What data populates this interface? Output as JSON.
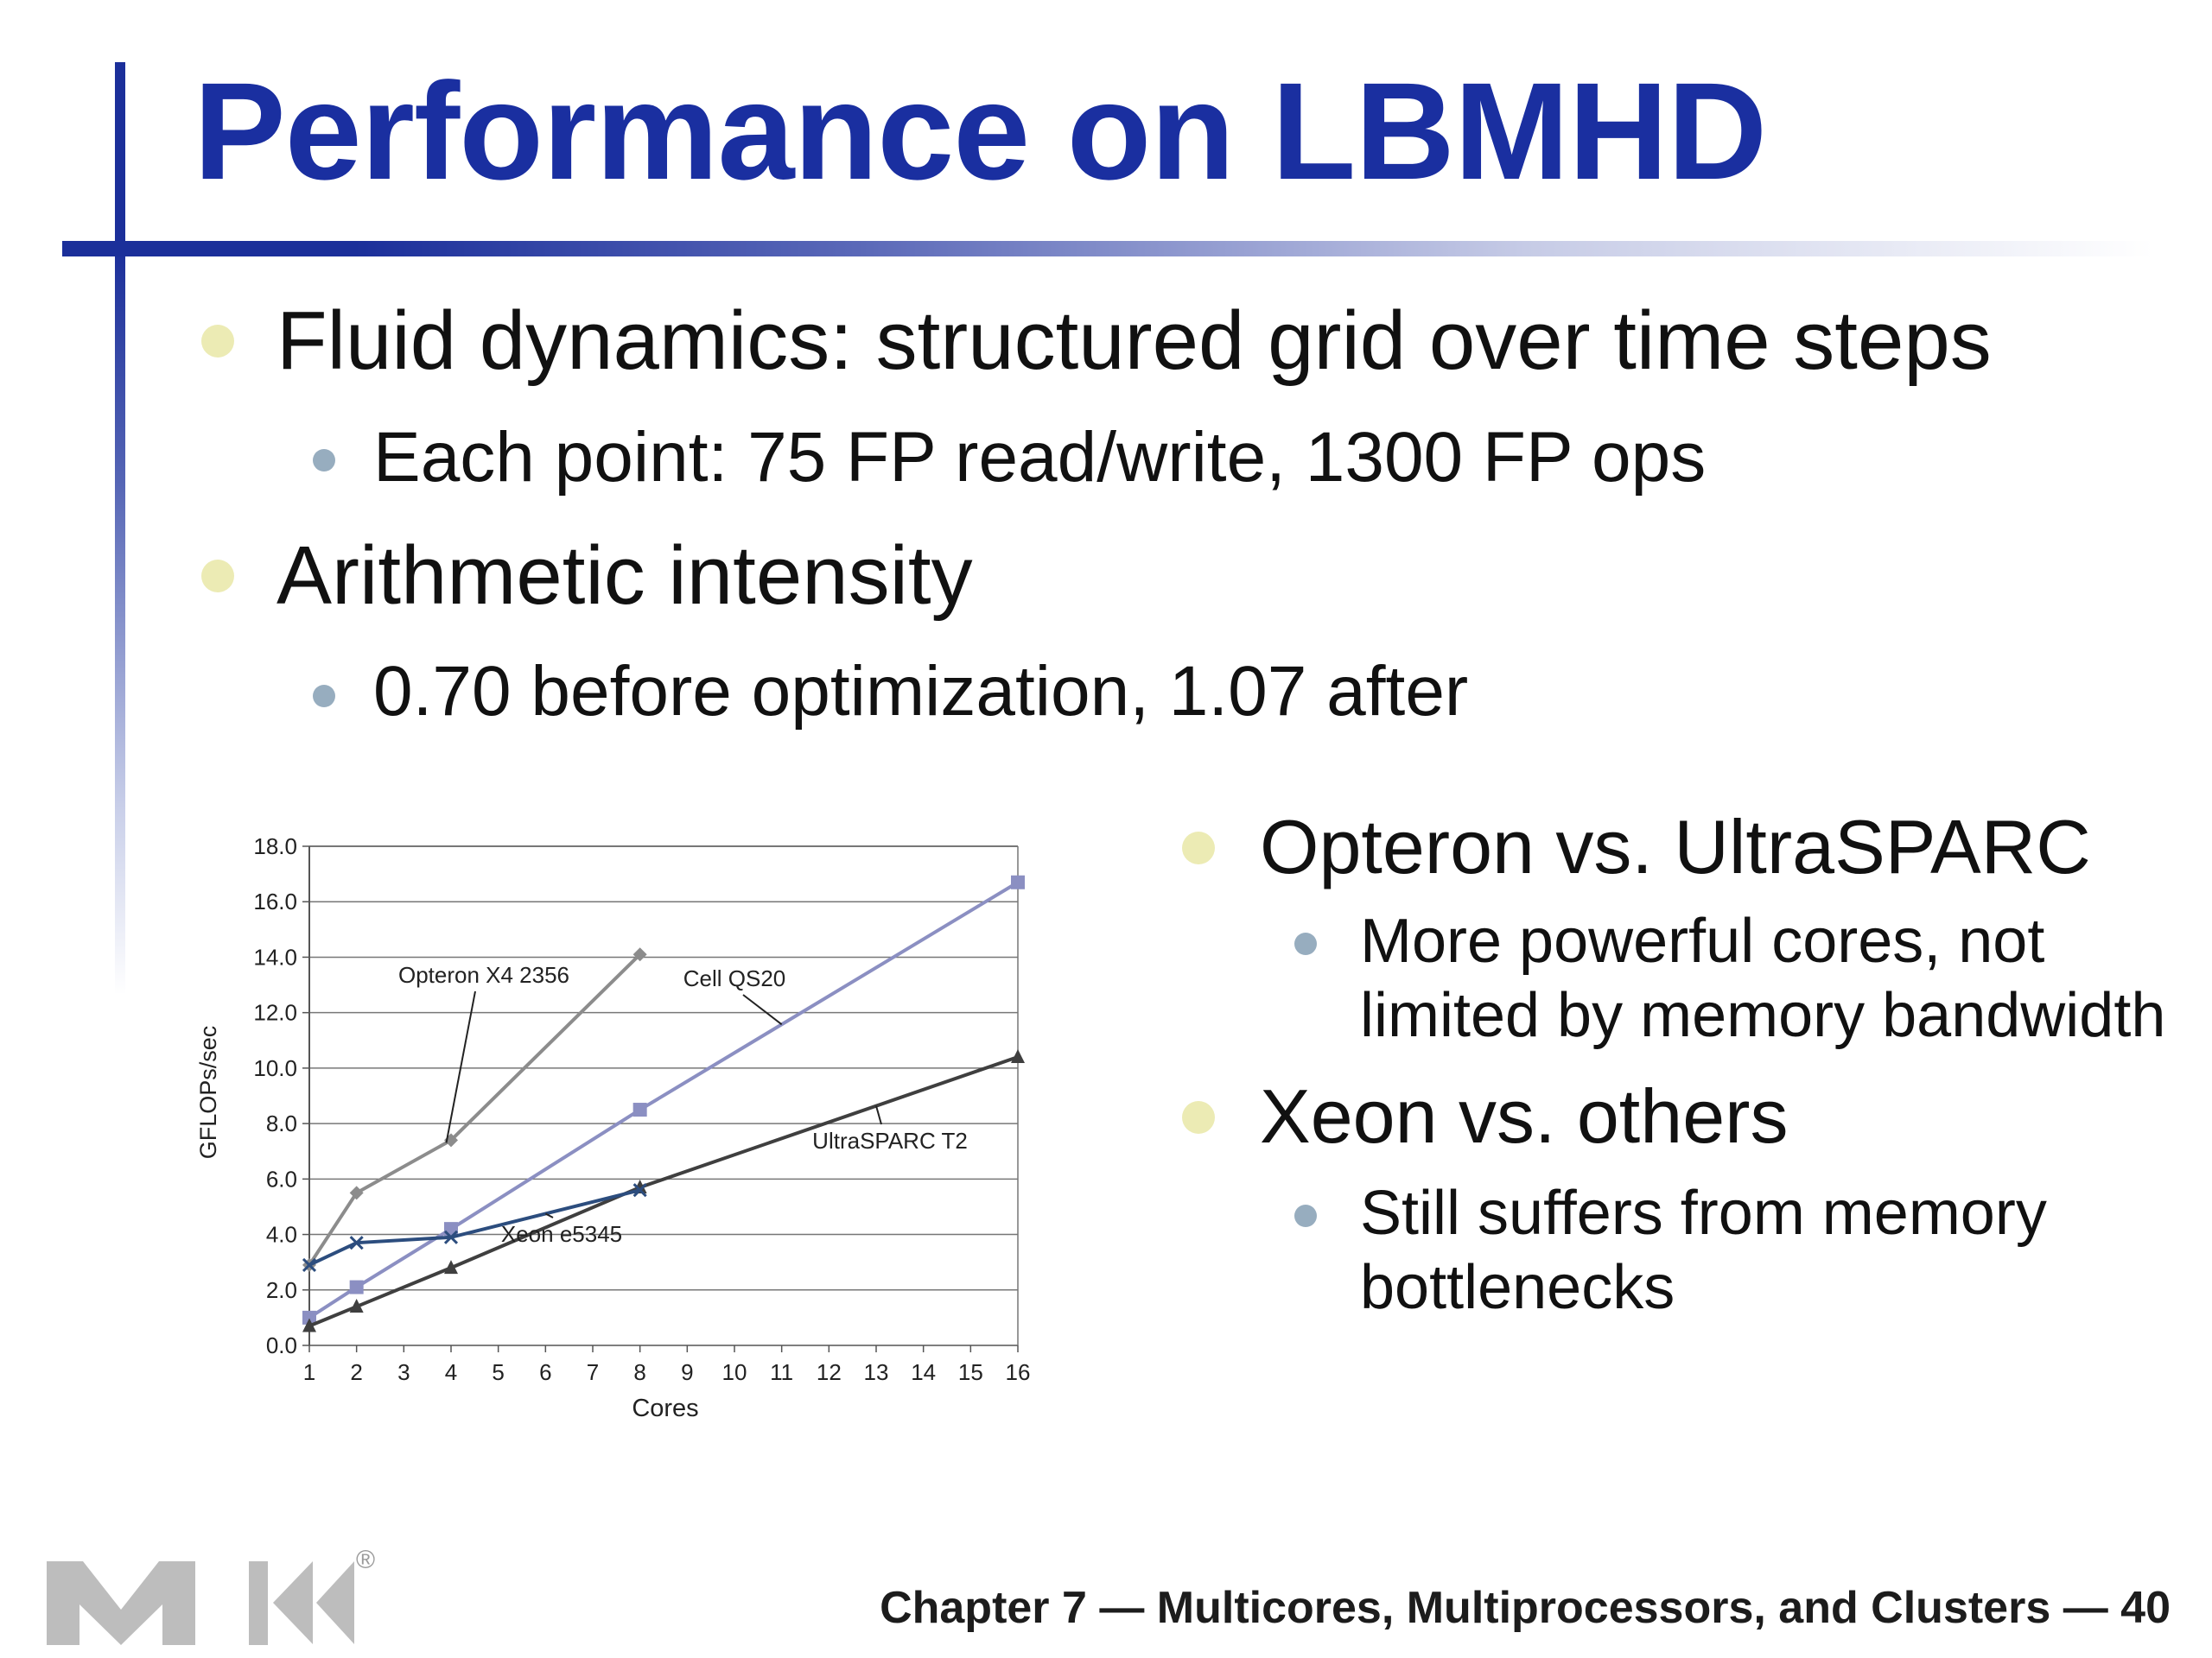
{
  "slide": {
    "title": "Performance on LBMHD",
    "bullets": [
      {
        "text": "Fluid dynamics: structured grid over time steps"
      },
      {
        "text": "Each point: 75 FP read/write, 1300 FP ops"
      },
      {
        "text": "Arithmetic intensity"
      },
      {
        "text": "0.70 before optimization, 1.07 after"
      }
    ],
    "right_bullets": [
      {
        "text": "Opteron vs. UltraSPARC"
      },
      {
        "lines": [
          "More powerful cores, not",
          "limited by memory bandwidth"
        ]
      },
      {
        "text": "Xeon vs. others"
      },
      {
        "lines": [
          "Still suffers from memory",
          "bottlenecks"
        ]
      }
    ],
    "footer": "Chapter 7 — Multicores, Multiprocessors, and Clusters — 40",
    "logo_registered_mark": "®"
  },
  "chart_data": {
    "type": "line",
    "xlabel": "Cores",
    "ylabel": "GFLOPs/sec",
    "ylim": [
      0,
      18
    ],
    "x_ticks": [
      "1",
      "2",
      "3",
      "4",
      "5",
      "6",
      "7",
      "8",
      "9",
      "10",
      "11",
      "12",
      "13",
      "14",
      "15",
      "16"
    ],
    "y_ticks": [
      "0.0",
      "2.0",
      "4.0",
      "6.0",
      "8.0",
      "10.0",
      "12.0",
      "14.0",
      "16.0",
      "18.0"
    ],
    "grid": "horizontal",
    "series": [
      {
        "name": "Opteron X4 2356",
        "color": "#8c8c8c",
        "marker": "diamond",
        "x": [
          1,
          2,
          4,
          8
        ],
        "y": [
          2.9,
          5.5,
          7.4,
          14.1
        ]
      },
      {
        "name": "Cell QS20",
        "color": "#8b8fc2",
        "marker": "square",
        "x": [
          1,
          2,
          4,
          8,
          16
        ],
        "y": [
          1.0,
          2.1,
          4.2,
          8.5,
          16.7
        ]
      },
      {
        "name": "UltraSPARC T2",
        "color": "#3f3f3f",
        "marker": "triangle",
        "x": [
          1,
          2,
          4,
          8,
          16
        ],
        "y": [
          0.7,
          1.4,
          2.8,
          5.7,
          10.4
        ]
      },
      {
        "name": "Xeon e5345",
        "color": "#2c4d7e",
        "marker": "x",
        "x": [
          1,
          2,
          4,
          8
        ],
        "y": [
          2.9,
          3.7,
          3.9,
          5.6
        ]
      }
    ]
  }
}
